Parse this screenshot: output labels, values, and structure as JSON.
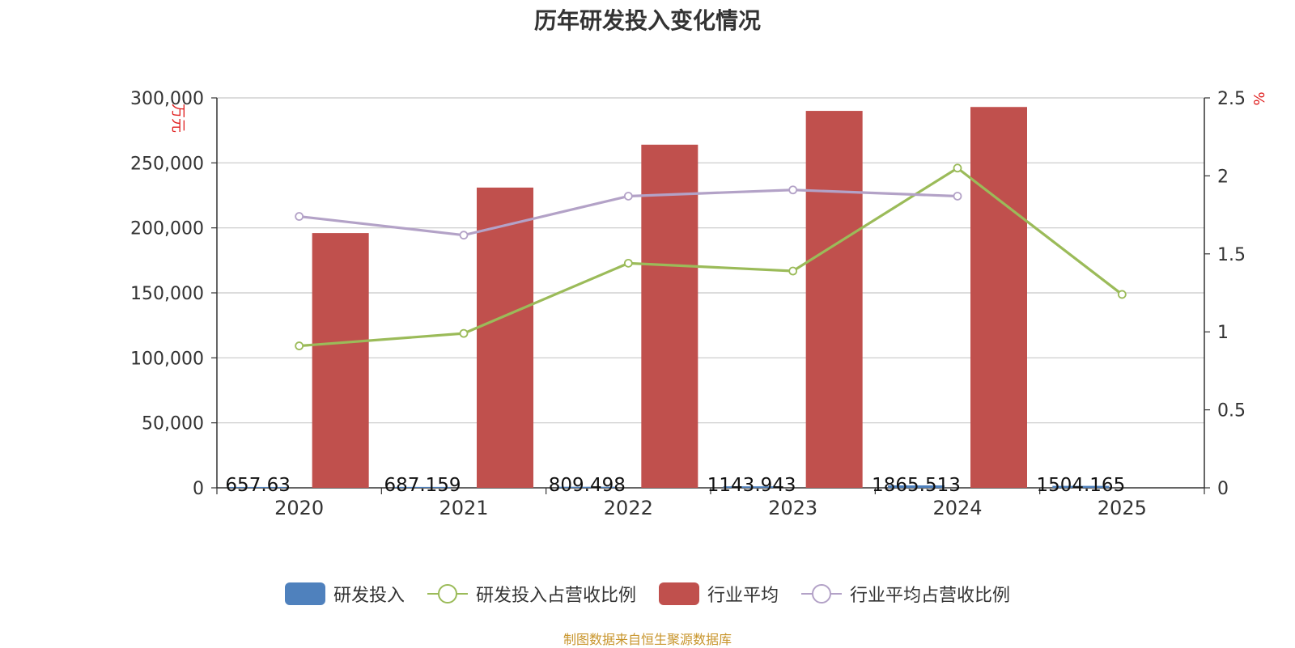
{
  "title": "历年研发投入变化情况",
  "source_note": "制图数据来自恒生聚源数据库",
  "chart_data": {
    "type": "bar",
    "categories": [
      "2020",
      "2021",
      "2022",
      "2023",
      "2024",
      "2025"
    ],
    "y_left": {
      "label": "万元",
      "ticks": [
        "0",
        "50,000",
        "100,000",
        "150,000",
        "200,000",
        "250,000",
        "300,000"
      ],
      "ylim": [
        0,
        300000
      ]
    },
    "y_right": {
      "label": "%",
      "ticks": [
        "0",
        "0.5",
        "1",
        "1.5",
        "2",
        "2.5"
      ],
      "ylim": [
        0,
        2.5
      ]
    },
    "series": [
      {
        "name": "研发投入",
        "type": "bar",
        "axis": "left",
        "color": "#4f81bd",
        "values": [
          657.63,
          687.159,
          809.498,
          1143.943,
          1865.513,
          1504.165
        ],
        "labels": [
          "657.63",
          "687.159",
          "809.498",
          "1143.943",
          "1865.513",
          "1504.165"
        ]
      },
      {
        "name": "研发投入占营收比例",
        "type": "line",
        "axis": "right",
        "color": "#9bbb59",
        "values": [
          0.91,
          0.99,
          1.44,
          1.39,
          2.05,
          1.24
        ]
      },
      {
        "name": "行业平均",
        "type": "bar",
        "axis": "left",
        "color": "#c0504d",
        "values": [
          196000,
          231000,
          264000,
          290000,
          293000,
          null
        ]
      },
      {
        "name": "行业平均占营收比例",
        "type": "line",
        "axis": "right",
        "color": "#b3a2c7",
        "values": [
          1.74,
          1.62,
          1.87,
          1.91,
          1.87,
          null
        ]
      }
    ],
    "grid": true,
    "legend_position": "bottom"
  }
}
